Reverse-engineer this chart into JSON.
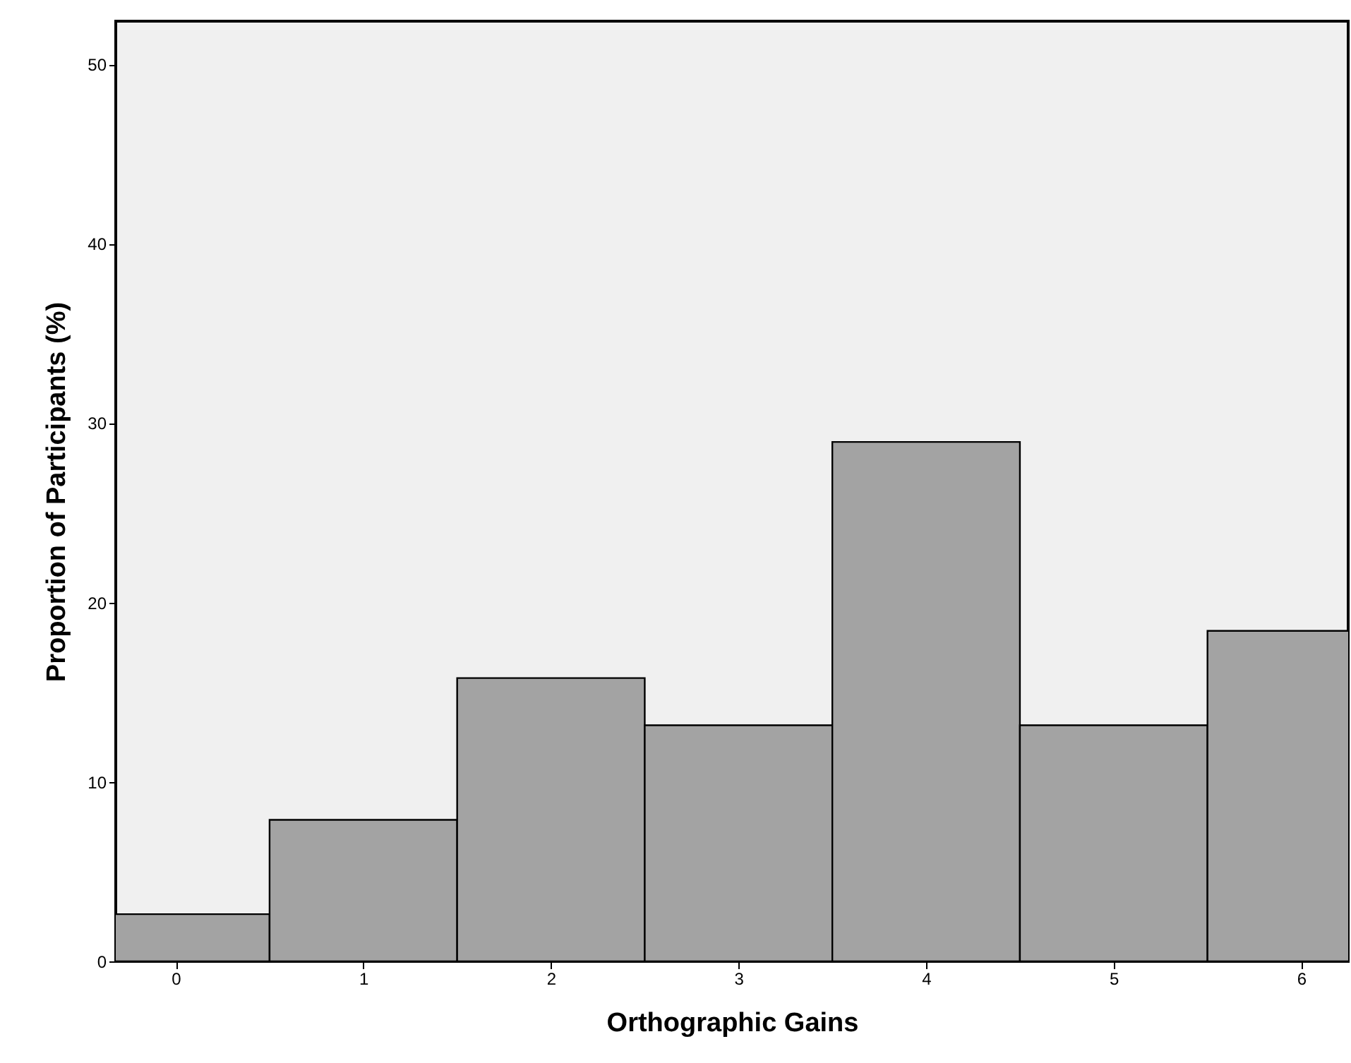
{
  "chart_data": {
    "type": "histogram",
    "xlabel": "Orthographic Gains",
    "ylabel": "Proportion of Participants (%)",
    "bins": [
      -0.5,
      0.5,
      1.5,
      2.5,
      3.5,
      4.5,
      5.5,
      6.5
    ],
    "values": [
      2.63,
      7.89,
      15.79,
      13.16,
      28.95,
      13.16,
      18.42
    ],
    "color": "#a3a3a3",
    "xlim": [
      -0.32,
      6.25
    ],
    "xticks": [
      0,
      1,
      2,
      3,
      4,
      5,
      6
    ],
    "ylim": [
      0,
      52.4
    ],
    "yticks": [
      0,
      10,
      20,
      30,
      40,
      50
    ],
    "grid": false
  }
}
